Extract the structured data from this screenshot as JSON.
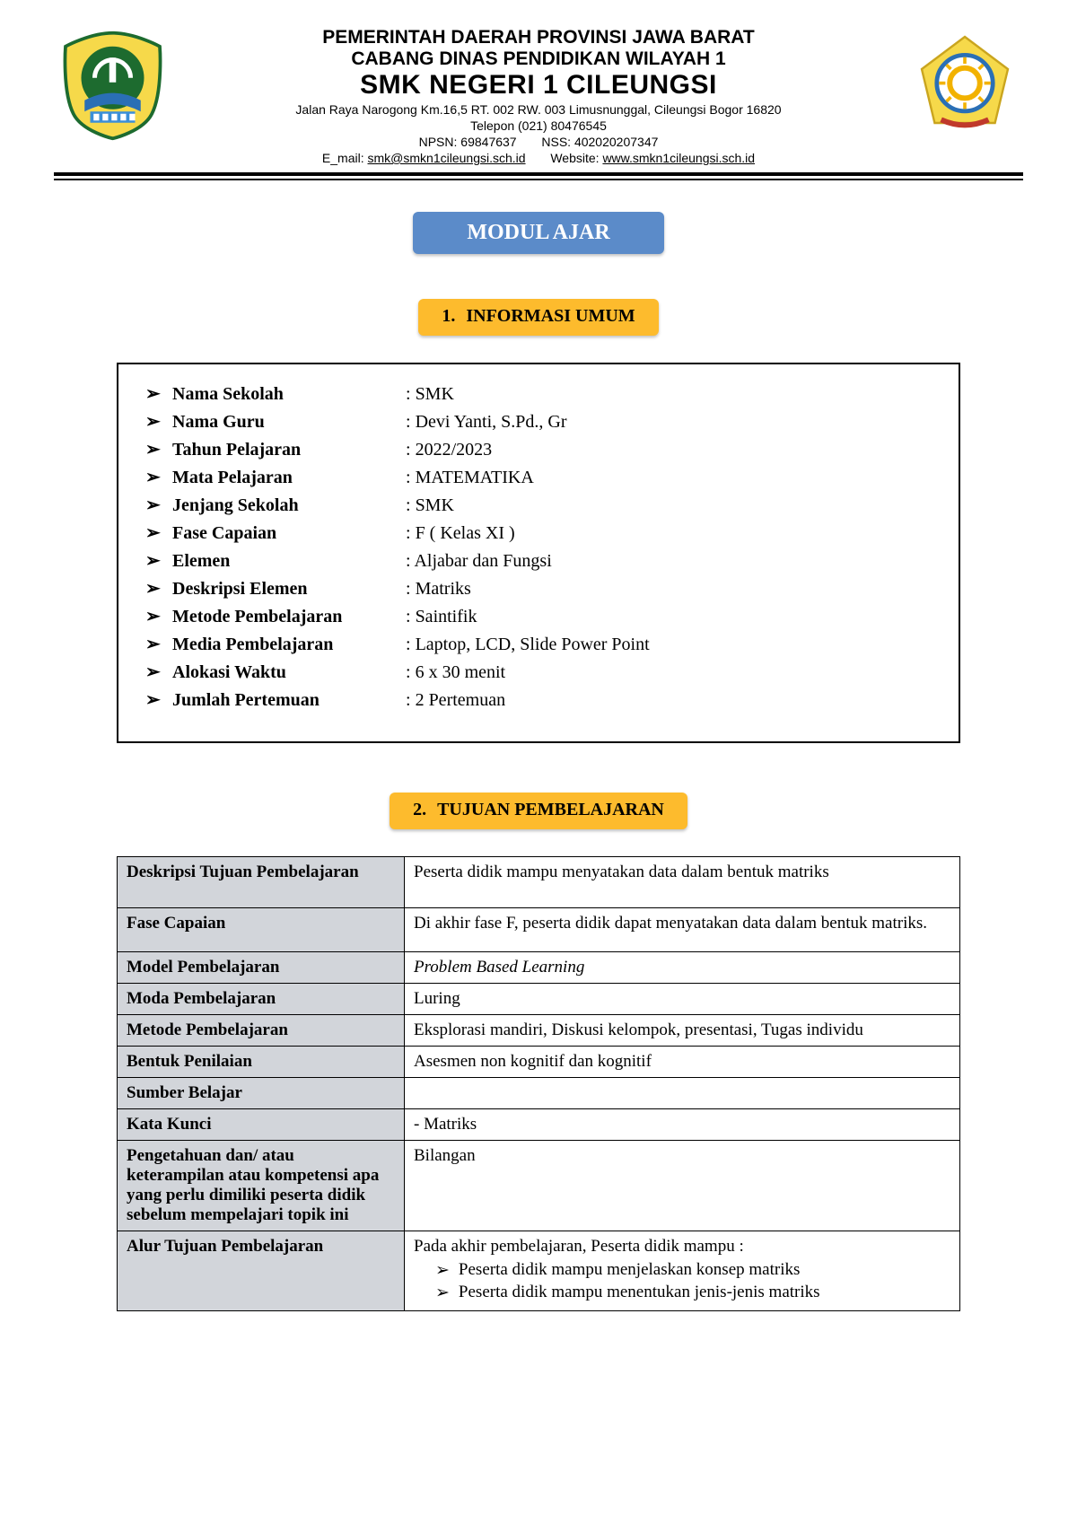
{
  "header": {
    "line1": "PEMERINTAH DAERAH PROVINSI JAWA BARAT",
    "line2": "CABANG DINAS PENDIDIKAN WILAYAH 1",
    "line3": "SMK NEGERI 1 CILEUNGSI",
    "addr1": "Jalan Raya Narogong Km.16,5 RT. 002  RW. 003  Limusnunggal, Cileungsi Bogor 16820",
    "addr2": "Telepon (021) 80476545",
    "npsn_label": "NPSN:",
    "npsn": "69847637",
    "nss_label": "NSS:",
    "nss": "402020207347",
    "email_label": "E_mail:",
    "email": "smk@smkn1cileungsi.sch.id",
    "website_label": "Website:",
    "website": "www.smkn1cileungsi.sch.id"
  },
  "title": "MODUL AJAR",
  "section1": {
    "num": "1.",
    "label": "INFORMASI UMUM"
  },
  "info": [
    {
      "label": "Nama Sekolah",
      "value": "SMK"
    },
    {
      "label": "Nama Guru",
      "value": "Devi Yanti, S.Pd., Gr"
    },
    {
      "label": "Tahun Pelajaran",
      "value": "2022/2023"
    },
    {
      "label": "Mata Pelajaran",
      "value": "MATEMATIKA"
    },
    {
      "label": "Jenjang Sekolah",
      "value": "SMK"
    },
    {
      "label": "Fase Capaian",
      "value": "F ( Kelas XI )"
    },
    {
      "label": "Elemen",
      "value": "Aljabar dan Fungsi"
    },
    {
      "label": "Deskripsi Elemen",
      "value": "Matriks"
    },
    {
      "label": "Metode Pembelajaran",
      "value": "Saintifik"
    },
    {
      "label": "Media Pembelajaran",
      "value": "Laptop, LCD, Slide Power Point"
    },
    {
      "label": "Alokasi Waktu",
      "value": "6 x 30 menit"
    },
    {
      "label": "Jumlah Pertemuan",
      "value": "2 Pertemuan"
    }
  ],
  "section2": {
    "num": "2.",
    "label": "TUJUAN PEMBELAJARAN"
  },
  "details": {
    "r1k": "Deskripsi Tujuan Pembelajaran",
    "r1v": "Peserta didik mampu menyatakan data dalam bentuk matriks",
    "r2k": "Fase Capaian",
    "r2v": "Di akhir fase F, peserta didik dapat menyatakan data  dalam bentuk matriks.",
    "r3k": "Model Pembelajaran",
    "r3v": "Problem Based Learning",
    "r4k": "Moda Pembelajaran",
    "r4v": "Luring",
    "r5k": "Metode Pembelajaran",
    "r5v": "Eksplorasi mandiri, Diskusi kelompok, presentasi, Tugas individu",
    "r6k": "Bentuk Penilaian",
    "r6v": "Asesmen non kognitif dan kognitif",
    "r7k": "Sumber Belajar",
    "r7v": "",
    "r8k": "Kata Kunci",
    "r8v": "- Matriks",
    "r9k": "Pengetahuan dan/ atau keterampilan atau kompetensi apa yang perlu dimiliki peserta didik sebelum mempelajari topik ini",
    "r9v": "Bilangan",
    "r10k": "Alur Tujuan Pembelajaran",
    "r10intro": "Pada akhir pembelajaran, Peserta didik mampu :",
    "r10a": "Peserta didik mampu menjelaskan konsep matriks",
    "r10b": "Peserta didik mampu menentukan jenis-jenis matriks"
  }
}
